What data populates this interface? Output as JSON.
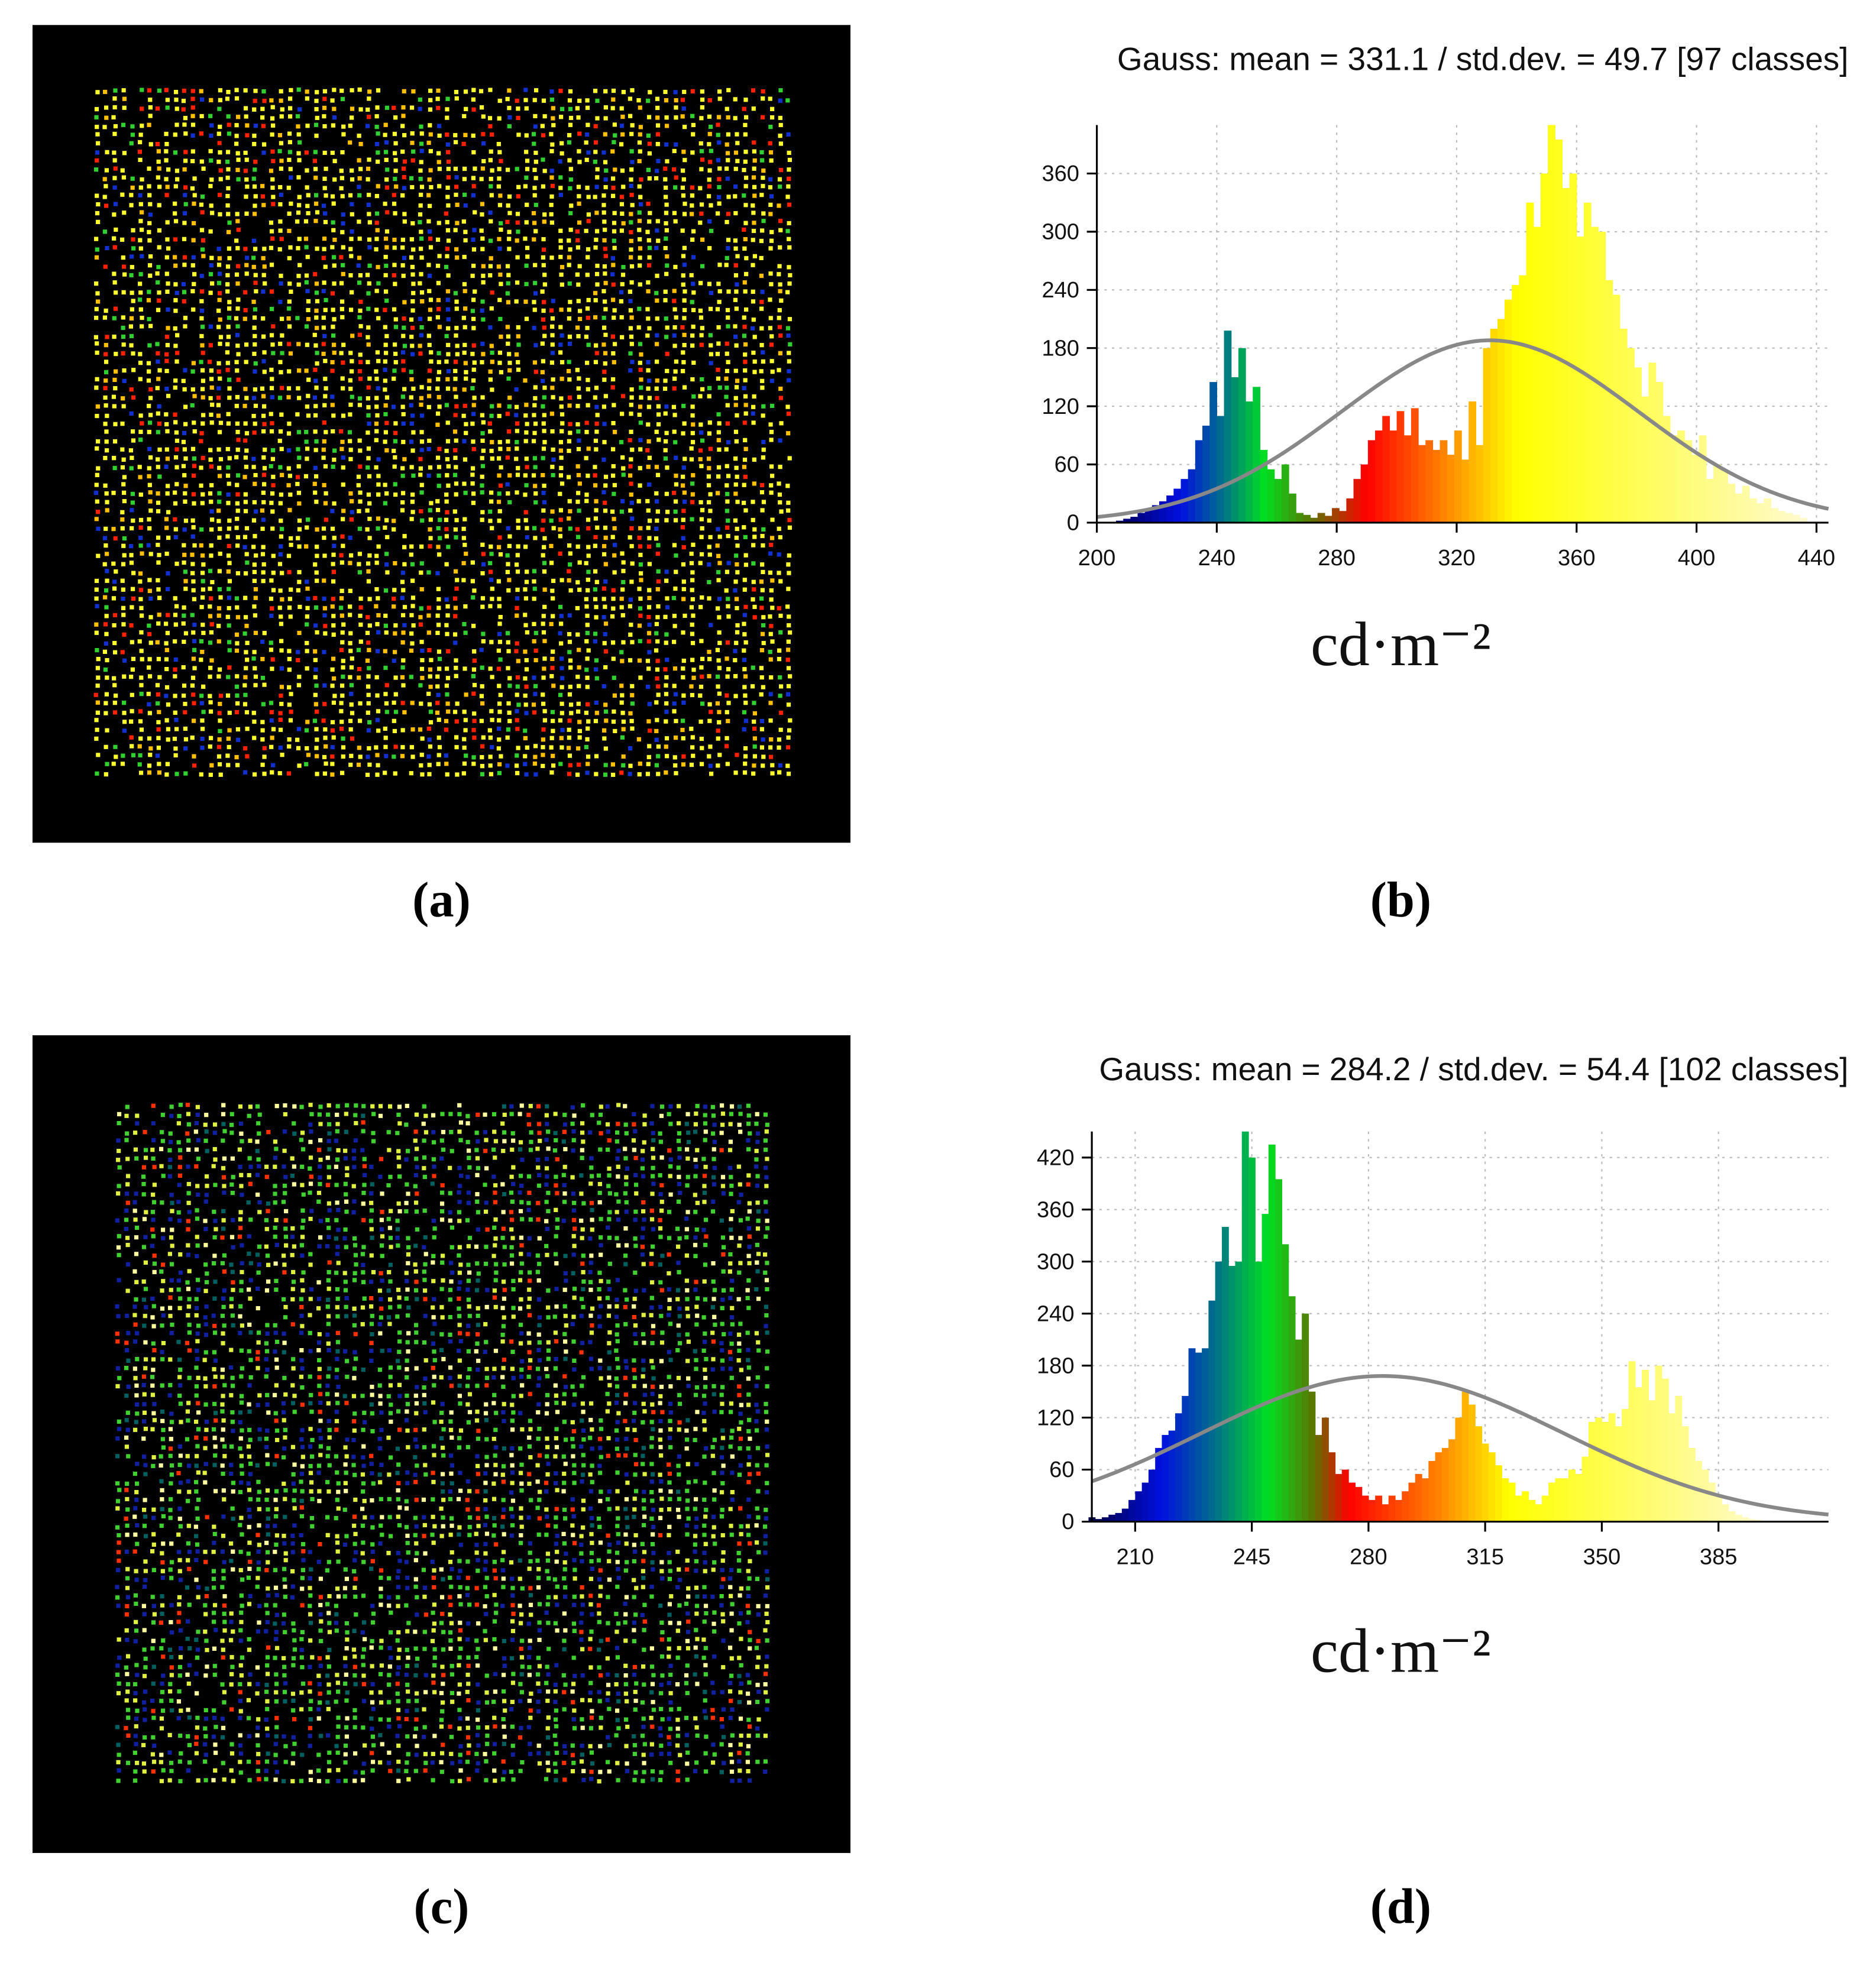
{
  "labels": [
    "(a)",
    "(b)",
    "(c)",
    "(d)"
  ],
  "chart_data": [
    {
      "type": "histogram",
      "title": "Gauss: mean = 331.1 / std.dev. = 49.7 [97 classes]",
      "x_label": "cd·m⁻²",
      "bins": [
        204,
        206.4,
        208.8,
        211.2,
        213.6,
        216,
        218.4,
        220.8,
        223.2,
        225.6,
        228,
        230.4,
        232.8,
        235.2,
        237.6,
        240,
        242.4,
        244.8,
        247.2,
        249.6,
        252,
        254.4,
        256.8,
        259.2,
        261.6,
        264,
        266.4,
        268.8,
        271.2,
        273.6,
        276,
        278.4,
        280.8,
        283.2,
        285.6,
        288,
        290.4,
        292.8,
        295.2,
        297.6,
        300,
        302.4,
        304.8,
        307.2,
        309.6,
        312,
        314.4,
        316.8,
        319.2,
        321.6,
        324,
        326.4,
        328.8,
        331.2,
        333.6,
        336,
        338.4,
        340.8,
        343.2,
        345.6,
        348,
        350.4,
        352.8,
        355.2,
        357.6,
        360,
        362.4,
        364.8,
        367.2,
        369.6,
        372,
        374.4,
        376.8,
        379.2,
        381.6,
        384,
        386.4,
        388.8,
        391.2,
        393.6,
        396,
        398.4,
        400.8,
        403.2,
        405.6,
        408,
        410.4,
        412.8,
        415.2,
        417.6,
        420,
        422.4,
        424.8,
        427.2,
        429.6,
        432,
        434.4,
        436.8
      ],
      "values": [
        0,
        2,
        4,
        6,
        10,
        14,
        18,
        22,
        28,
        35,
        45,
        55,
        85,
        100,
        145,
        110,
        198,
        150,
        180,
        125,
        140,
        75,
        55,
        45,
        60,
        30,
        10,
        8,
        5,
        10,
        7,
        15,
        12,
        25,
        45,
        60,
        85,
        95,
        110,
        95,
        115,
        90,
        118,
        80,
        85,
        75,
        85,
        70,
        95,
        65,
        125,
        80,
        180,
        200,
        210,
        230,
        245,
        255,
        330,
        305,
        360,
        410,
        395,
        345,
        360,
        295,
        330,
        305,
        300,
        250,
        235,
        200,
        180,
        160,
        130,
        165,
        145,
        110,
        90,
        95,
        85,
        70,
        90,
        45,
        60,
        55,
        40,
        30,
        38,
        25,
        20,
        25,
        15,
        12,
        10,
        8,
        5
      ],
      "colormap": [
        {
          "value": 212,
          "color": "#00007a"
        },
        {
          "value": 228,
          "color": "#0010e0"
        },
        {
          "value": 242,
          "color": "#00708a"
        },
        {
          "value": 256,
          "color": "#00e020"
        },
        {
          "value": 272,
          "color": "#607000"
        },
        {
          "value": 290,
          "color": "#ff0000"
        },
        {
          "value": 318,
          "color": "#ff9000"
        },
        {
          "value": 340,
          "color": "#ffff00"
        },
        {
          "value": 437,
          "color": "#fffad0"
        }
      ],
      "curve": {
        "mean": 331.1,
        "std": 49.7,
        "peak": 188,
        "color": "#888888"
      },
      "xlim": [
        200,
        444
      ],
      "xticks": [
        200,
        240,
        280,
        320,
        360,
        400,
        440
      ],
      "ylim": [
        0,
        410
      ],
      "yticks": [
        0,
        60,
        120,
        180,
        240,
        300,
        360
      ],
      "grid": true
    },
    {
      "type": "histogram",
      "title": "Gauss: mean = 284.2 / std.dev. = 54.4 [102 classes]",
      "x_label": "cd·m⁻²",
      "bins": [
        196,
        198,
        200,
        202,
        204,
        206,
        208,
        210,
        212,
        214,
        216,
        218,
        220,
        222,
        224,
        226,
        228,
        230,
        232,
        234,
        236,
        238,
        240,
        242,
        244,
        246,
        248,
        250,
        252,
        254,
        256,
        258,
        260,
        262,
        264,
        266,
        268,
        270,
        272,
        274,
        276,
        278,
        280,
        282,
        284,
        286,
        288,
        290,
        292,
        294,
        296,
        298,
        300,
        302,
        304,
        306,
        308,
        310,
        312,
        314,
        316,
        318,
        320,
        322,
        324,
        326,
        328,
        330,
        332,
        334,
        336,
        338,
        340,
        342,
        344,
        346,
        348,
        350,
        352,
        354,
        356,
        358,
        360,
        362,
        364,
        366,
        368,
        370,
        372,
        374,
        376,
        378,
        380,
        382,
        384,
        386,
        388,
        390,
        392,
        394,
        396,
        398,
        400
      ],
      "values": [
        5,
        3,
        5,
        8,
        10,
        15,
        25,
        35,
        45,
        60,
        85,
        100,
        105,
        125,
        145,
        200,
        195,
        200,
        255,
        300,
        340,
        295,
        300,
        450,
        420,
        300,
        355,
        435,
        395,
        320,
        260,
        210,
        240,
        150,
        100,
        120,
        80,
        55,
        60,
        45,
        40,
        30,
        25,
        30,
        20,
        30,
        25,
        35,
        45,
        55,
        50,
        70,
        80,
        85,
        95,
        120,
        150,
        135,
        110,
        90,
        80,
        65,
        50,
        45,
        30,
        35,
        25,
        20,
        30,
        45,
        50,
        50,
        60,
        55,
        75,
        115,
        120,
        115,
        125,
        110,
        130,
        185,
        155,
        175,
        140,
        180,
        165,
        125,
        145,
        110,
        85,
        70,
        60,
        45,
        30,
        20,
        12,
        8,
        5,
        3,
        2,
        1
      ],
      "colormap": [
        {
          "value": 198,
          "color": "#00004a"
        },
        {
          "value": 218,
          "color": "#0010e0"
        },
        {
          "value": 234,
          "color": "#00708a"
        },
        {
          "value": 250,
          "color": "#00e020"
        },
        {
          "value": 264,
          "color": "#607000"
        },
        {
          "value": 274,
          "color": "#ff0000"
        },
        {
          "value": 302,
          "color": "#ff8800"
        },
        {
          "value": 322,
          "color": "#ffff00"
        },
        {
          "value": 400,
          "color": "#fffad0"
        }
      ],
      "curve": {
        "mean": 284.2,
        "std": 54.4,
        "peak": 168,
        "color": "#888888"
      },
      "xlim": [
        197,
        418
      ],
      "xticks": [
        210,
        245,
        280,
        315,
        350,
        385
      ],
      "ylim": [
        0,
        450
      ],
      "yticks": [
        0,
        60,
        120,
        180,
        240,
        300,
        360,
        420
      ],
      "grid": true
    }
  ]
}
